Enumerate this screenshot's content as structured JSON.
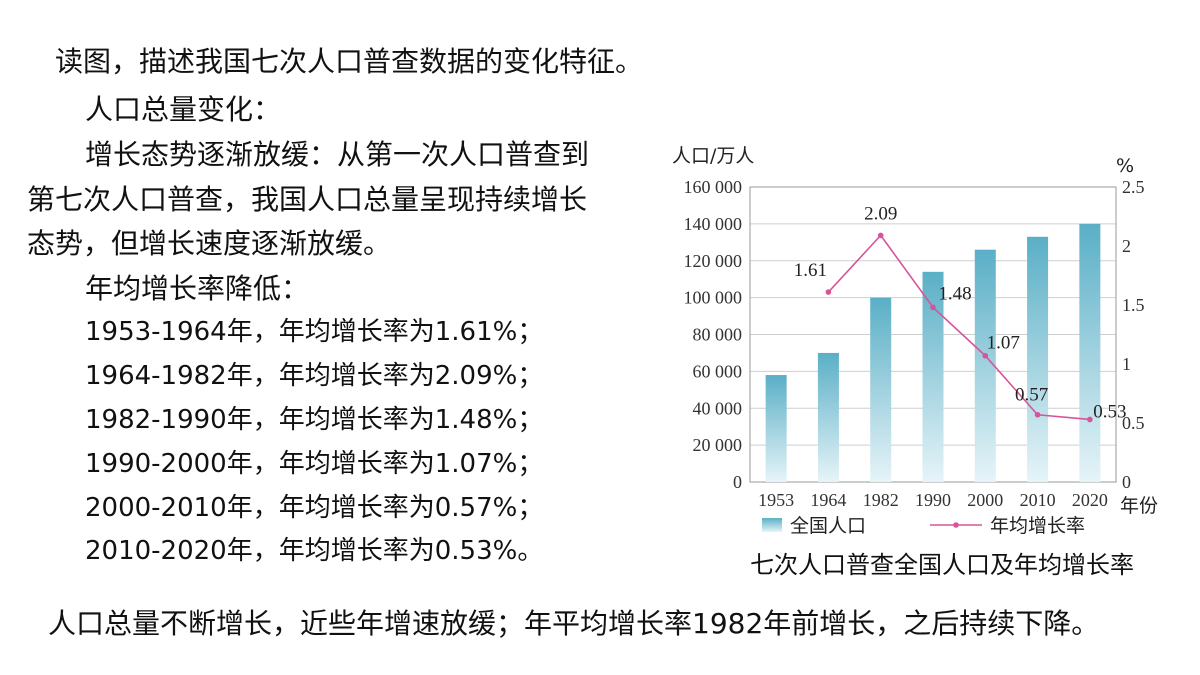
{
  "question": "读图，描述我国七次人口普查数据的变化特征。",
  "section_total": {
    "heading": "人口总量变化：",
    "para_line1": "增长态势逐渐放缓：从第一次人口普查到",
    "para_line2": "第七次人口普查，我国人口总量呈现持续增长",
    "para_line3": "态势，但增长速度逐渐放缓。"
  },
  "section_rate": {
    "heading": "年均增长率降低：",
    "lines": [
      "1953-1964年，年均增长率为1.61%；",
      "1964-1982年，年均增长率为2.09%；",
      "1982-1990年，年均增长率为1.48%；",
      "1990-2000年，年均增长率为1.07%；",
      "2000-2010年，年均增长率为0.57%；",
      "2010-2020年，年均增长率为0.53%。"
    ]
  },
  "conclusion": "人口总量不断增长，近些年增速放缓；年平均增长率1982年前增长，之后持续下降。",
  "colors": {
    "bar_top": "#5aafc6",
    "bar_bottom": "#e6f4f8",
    "line": "#d6559a"
  },
  "chart_data": {
    "type": "bar",
    "title": "七次人口普查全国人口及年均增长率",
    "categories": [
      "1953",
      "1964",
      "1982",
      "1990",
      "2000",
      "2010",
      "2020"
    ],
    "xlabel": "年份",
    "ylabel": "人口/万人",
    "y2label": "%",
    "ylim": [
      0,
      160000
    ],
    "y2lim": [
      0,
      2.5
    ],
    "yticks": [
      "0",
      "20 000",
      "40 000",
      "60 000",
      "80 000",
      "100 000",
      "120 000",
      "140 000",
      "160 000"
    ],
    "y2ticks": [
      "0",
      "0.5",
      "1",
      "1.5",
      "2",
      "2.5"
    ],
    "grid": true,
    "legend_position": "bottom",
    "series": [
      {
        "name": "全国人口",
        "type": "bar",
        "values": [
          58000,
          70000,
          100000,
          114000,
          126000,
          133000,
          140000
        ]
      },
      {
        "name": "年均增长率",
        "type": "line",
        "axis": "right",
        "x": [
          "1964",
          "1982",
          "1990",
          "2000",
          "2010",
          "2020"
        ],
        "values": [
          1.61,
          2.09,
          1.48,
          1.07,
          0.57,
          0.53
        ],
        "labels": [
          "1.61",
          "2.09",
          "1.48",
          "1.07",
          "0.57",
          "0.53"
        ]
      }
    ]
  }
}
